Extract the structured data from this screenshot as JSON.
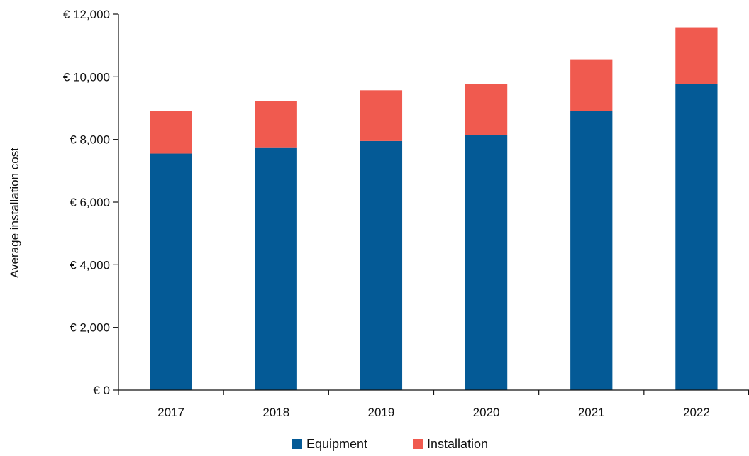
{
  "chart_data": {
    "type": "bar",
    "stacked": true,
    "categories": [
      "2017",
      "2018",
      "2019",
      "2020",
      "2021",
      "2022"
    ],
    "series": [
      {
        "name": "Equipment",
        "color": "#045a96",
        "values": [
          7550,
          7750,
          7950,
          8150,
          8900,
          9780
        ]
      },
      {
        "name": "Installation",
        "color": "#f05a4f",
        "values": [
          1350,
          1480,
          1620,
          1630,
          1660,
          1800
        ]
      }
    ],
    "ylabel": "Average installation cost",
    "xlabel": "",
    "ylim": [
      0,
      12000
    ],
    "yticks": [
      0,
      2000,
      4000,
      6000,
      8000,
      10000,
      12000
    ],
    "ytick_labels": [
      "€ 0",
      "€ 2,000",
      "€ 4,000",
      "€ 6,000",
      "€ 8,000",
      "€ 10,000",
      "€ 12,000"
    ],
    "grid": false,
    "legend_position": "bottom"
  }
}
